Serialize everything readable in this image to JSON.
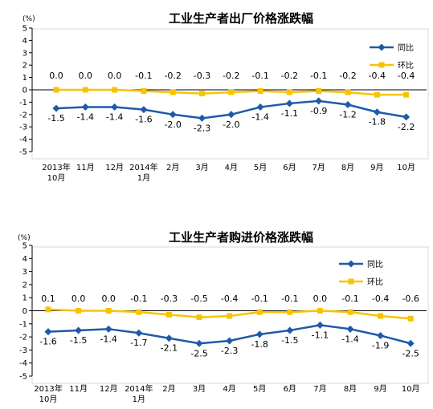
{
  "chart_data": [
    {
      "type": "line",
      "title": "工业生产者出厂价格涨跌幅",
      "unit": "(%)",
      "categories": [
        [
          "2013年",
          "10月"
        ],
        [
          "11月"
        ],
        [
          "12月"
        ],
        [
          "2014年",
          "1月"
        ],
        [
          "2月"
        ],
        [
          "3月"
        ],
        [
          "4月"
        ],
        [
          "5月"
        ],
        [
          "6月"
        ],
        [
          "7月"
        ],
        [
          "8月"
        ],
        [
          "9月"
        ],
        [
          "10月"
        ]
      ],
      "ylim": [
        -5,
        5
      ],
      "yticks": [
        5,
        4,
        3,
        2,
        1,
        0,
        -1,
        -2,
        -3,
        -4,
        -5
      ],
      "legend_position": "top-right",
      "series": [
        {
          "name": "同比",
          "color": "#1f5aa8",
          "marker": "diamond",
          "values": [
            -1.5,
            -1.4,
            -1.4,
            -1.6,
            -2.0,
            -2.3,
            -2.0,
            -1.4,
            -1.1,
            -0.9,
            -1.2,
            -1.8,
            -2.2
          ],
          "labels": [
            "-1.5",
            "-1.4",
            "-1.4",
            "-1.6",
            "-2.0",
            "-2.3",
            "-2.0",
            "-1.4",
            "-1.1",
            "-0.9",
            "-1.2",
            "-1.8",
            "-2.2"
          ]
        },
        {
          "name": "环比",
          "color": "#f7c400",
          "marker": "square",
          "values": [
            0.0,
            0.0,
            0.0,
            -0.1,
            -0.2,
            -0.3,
            -0.2,
            -0.1,
            -0.2,
            -0.1,
            -0.2,
            -0.4,
            -0.4
          ],
          "labels": [
            "0.0",
            "0.0",
            "0.0",
            "-0.1",
            "-0.2",
            "-0.3",
            "-0.2",
            "-0.1",
            "-0.2",
            "-0.1",
            "-0.2",
            "-0.4",
            "-0.4"
          ]
        }
      ]
    },
    {
      "type": "line",
      "title": "工业生产者购进价格涨跌幅",
      "unit": "(%)",
      "categories": [
        [
          "2013年",
          "10月"
        ],
        [
          "11月"
        ],
        [
          "12月"
        ],
        [
          "2014年",
          "1月"
        ],
        [
          "2月"
        ],
        [
          "3月"
        ],
        [
          "4月"
        ],
        [
          "5月"
        ],
        [
          "6月"
        ],
        [
          "7月"
        ],
        [
          "8月"
        ],
        [
          "9月"
        ],
        [
          "10月"
        ]
      ],
      "ylim": [
        -5,
        5
      ],
      "yticks": [
        5,
        4,
        3,
        2,
        1,
        0,
        -1,
        -2,
        -3,
        -4,
        -5
      ],
      "legend_position": "top-right",
      "series": [
        {
          "name": "同比",
          "color": "#1f5aa8",
          "marker": "diamond",
          "values": [
            -1.6,
            -1.5,
            -1.4,
            -1.7,
            -2.1,
            -2.5,
            -2.3,
            -1.8,
            -1.5,
            -1.1,
            -1.4,
            -1.9,
            -2.5
          ],
          "labels": [
            "-1.6",
            "-1.5",
            "-1.4",
            "-1.7",
            "-2.1",
            "-2.5",
            "-2.3",
            "-1.8",
            "-1.5",
            "-1.1",
            "-1.4",
            "-1.9",
            "-2.5"
          ]
        },
        {
          "name": "环比",
          "color": "#f7c400",
          "marker": "square",
          "values": [
            0.1,
            0.0,
            0.0,
            -0.1,
            -0.3,
            -0.5,
            -0.4,
            -0.1,
            -0.1,
            0.0,
            -0.1,
            -0.4,
            -0.6
          ],
          "labels": [
            "0.1",
            "0.0",
            "0.0",
            "-0.1",
            "-0.3",
            "-0.5",
            "-0.4",
            "-0.1",
            "-0.1",
            "0.0",
            "-0.1",
            "-0.4",
            "-0.6"
          ]
        }
      ]
    }
  ]
}
